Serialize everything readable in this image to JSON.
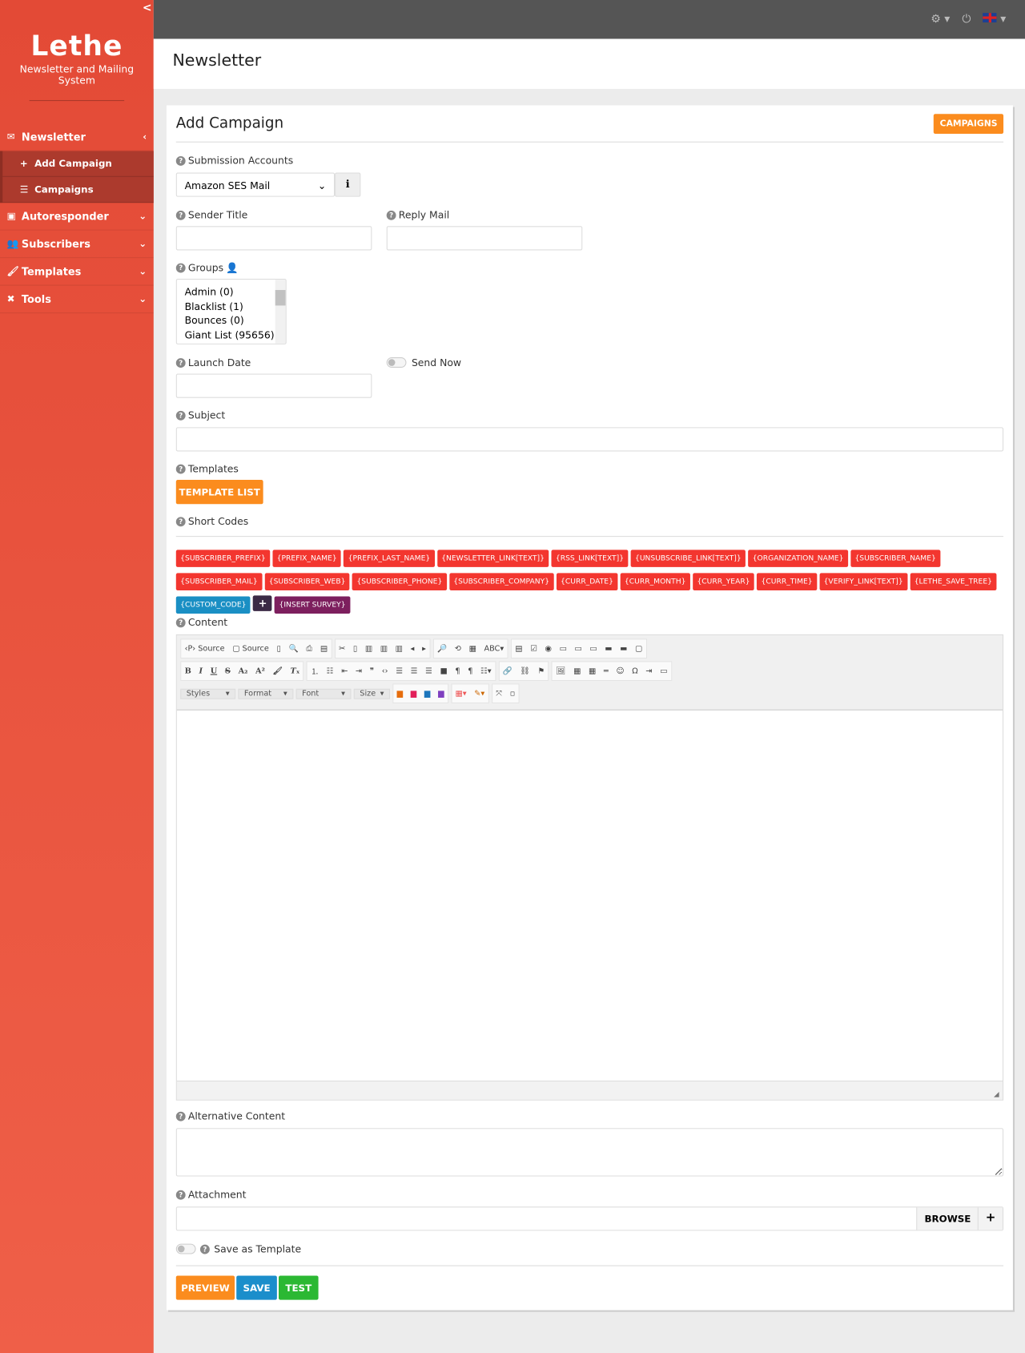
{
  "sidebar": {
    "brand": "Lethe",
    "subtitle": "Newsletter and Mailing System",
    "newsletter": "Newsletter",
    "sub_items": [
      {
        "label": "Add Campaign"
      },
      {
        "label": "Campaigns"
      }
    ],
    "items": [
      {
        "label": "Autoresponder"
      },
      {
        "label": "Subscribers"
      },
      {
        "label": "Templates"
      },
      {
        "label": "Tools"
      }
    ]
  },
  "topbar": {
    "icons": [
      "gear-icon",
      "power-icon",
      "uk-flag-icon"
    ]
  },
  "page_title": "Newsletter",
  "card": {
    "title": "Add Campaign",
    "campaigns_button": "CAMPAIGNS"
  },
  "form": {
    "submission_accounts": {
      "label": "Submission Accounts",
      "value": "Amazon SES Mail"
    },
    "sender_title": {
      "label": "Sender Title",
      "value": ""
    },
    "reply_mail": {
      "label": "Reply Mail",
      "value": ""
    },
    "groups": {
      "label": "Groups",
      "options": [
        "Admin (0)",
        "Blacklist (1)",
        "Bounces (0)",
        "Giant List (95656)"
      ]
    },
    "launch_date": {
      "label": "Launch Date",
      "value": ""
    },
    "send_now": {
      "label": "Send Now",
      "on": false
    },
    "subject": {
      "label": "Subject",
      "value": ""
    },
    "templates": {
      "label": "Templates",
      "button": "TEMPLATE LIST"
    },
    "short_codes": {
      "label": "Short Codes",
      "codes": [
        "{SUBSCRIBER_PREFIX}",
        "{PREFIX_NAME}",
        "{PREFIX_LAST_NAME}",
        "{NEWSLETTER_LINK[TEXT]}",
        "{RSS_LINK[TEXT]}",
        "{UNSUBSCRIBE_LINK[TEXT]}",
        "{ORGANIZATION_NAME}",
        "{SUBSCRIBER_NAME}",
        "{SUBSCRIBER_MAIL}",
        "{SUBSCRIBER_WEB}",
        "{SUBSCRIBER_PHONE}",
        "{SUBSCRIBER_COMPANY}",
        "{CURR_DATE}",
        "{CURR_MONTH}",
        "{CURR_YEAR}",
        "{CURR_TIME}",
        "{VERIFY_LINK[TEXT]}",
        "{LETHE_SAVE_TREE}"
      ],
      "custom": "{CUSTOM_CODE}",
      "add": "+",
      "survey": "{INSERT SURVEY}"
    },
    "content": {
      "label": "Content",
      "source1": "Source",
      "source2": "Source",
      "selects": [
        "Styles",
        "Format",
        "Font",
        "Size"
      ]
    },
    "alternative_content": {
      "label": "Alternative Content",
      "value": ""
    },
    "attachment": {
      "label": "Attachment",
      "browse": "BROWSE",
      "add": "+"
    },
    "save_as_template": {
      "label": "Save as Template",
      "on": false
    }
  },
  "actions": {
    "preview": "PREVIEW",
    "save": "SAVE",
    "test": "TEST"
  },
  "colors": {
    "sidebar": "#e94f3b",
    "orange": "#fb8c1e",
    "blue": "#1b8ecb",
    "green": "#2bb833",
    "tag": "#f3362f",
    "custom": "#1a8fc4",
    "add": "#3b2a45",
    "survey": "#7d1f5e"
  }
}
